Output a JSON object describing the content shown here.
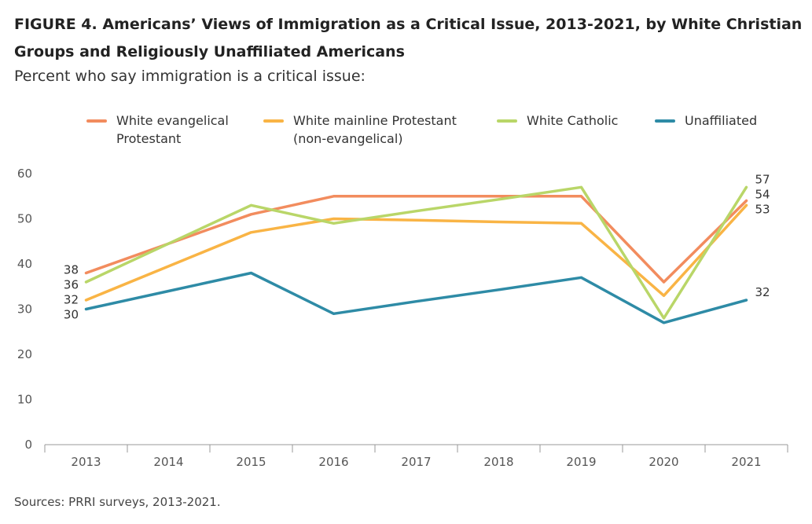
{
  "figure": {
    "title_line1": "FIGURE 4. Americans’ Views of Immigration as a Critical Issue, 2013-2021, by White Christian",
    "title_line2": "Groups and Religiously Unaffiliated Americans",
    "subtitle": "Percent who say immigration is a critical issue:",
    "source": "Sources: PRRI surveys, 2013-2021."
  },
  "legend": [
    {
      "line1": "White evangelical",
      "line2": "Protestant",
      "color": "#F28C5E"
    },
    {
      "line1": "White mainline Protestant",
      "line2": "(non-evangelical)",
      "color": "#F9B445"
    },
    {
      "line1": "White Catholic",
      "line2": "",
      "color": "#B9D668"
    },
    {
      "line1": "Unaffiliated",
      "line2": "",
      "color": "#2E8BA6"
    }
  ],
  "chart_data": {
    "type": "line",
    "title": "FIGURE 4. Americans’ Views of Immigration as a Critical Issue, 2013-2021, by White Christian Groups and Religiously Unaffiliated Americans",
    "subtitle": "Percent who say immigration is a critical issue:",
    "xlabel": "",
    "ylabel": "",
    "ylim": [
      0,
      60
    ],
    "yticks": [
      0,
      10,
      20,
      30,
      40,
      50,
      60
    ],
    "grid": false,
    "legend_position": "top",
    "categories": [
      "2013",
      "2014",
      "2015",
      "2016",
      "2017",
      "2018",
      "2019",
      "2020",
      "2021"
    ],
    "series": [
      {
        "name": "White evangelical Protestant",
        "color": "#F28C5E",
        "values": [
          38,
          44.5,
          51,
          55,
          55,
          55,
          55,
          36,
          54
        ],
        "label_start": "38",
        "label_end": "54"
      },
      {
        "name": "White mainline Protestant (non-evangelical)",
        "color": "#F9B445",
        "values": [
          32,
          39.5,
          47,
          50,
          49.7,
          49.3,
          49,
          33,
          53
        ],
        "label_start": "32",
        "label_end": "53"
      },
      {
        "name": "White Catholic",
        "color": "#B9D668",
        "values": [
          36,
          44.5,
          53,
          49,
          51.7,
          54.3,
          57,
          28,
          57
        ],
        "label_start": "36",
        "label_end": "57"
      },
      {
        "name": "Unaffiliated",
        "color": "#2E8BA6",
        "values": [
          30,
          34,
          38,
          29,
          31.7,
          34.3,
          37,
          27,
          32
        ],
        "label_start": "30",
        "label_end": "32"
      }
    ]
  }
}
